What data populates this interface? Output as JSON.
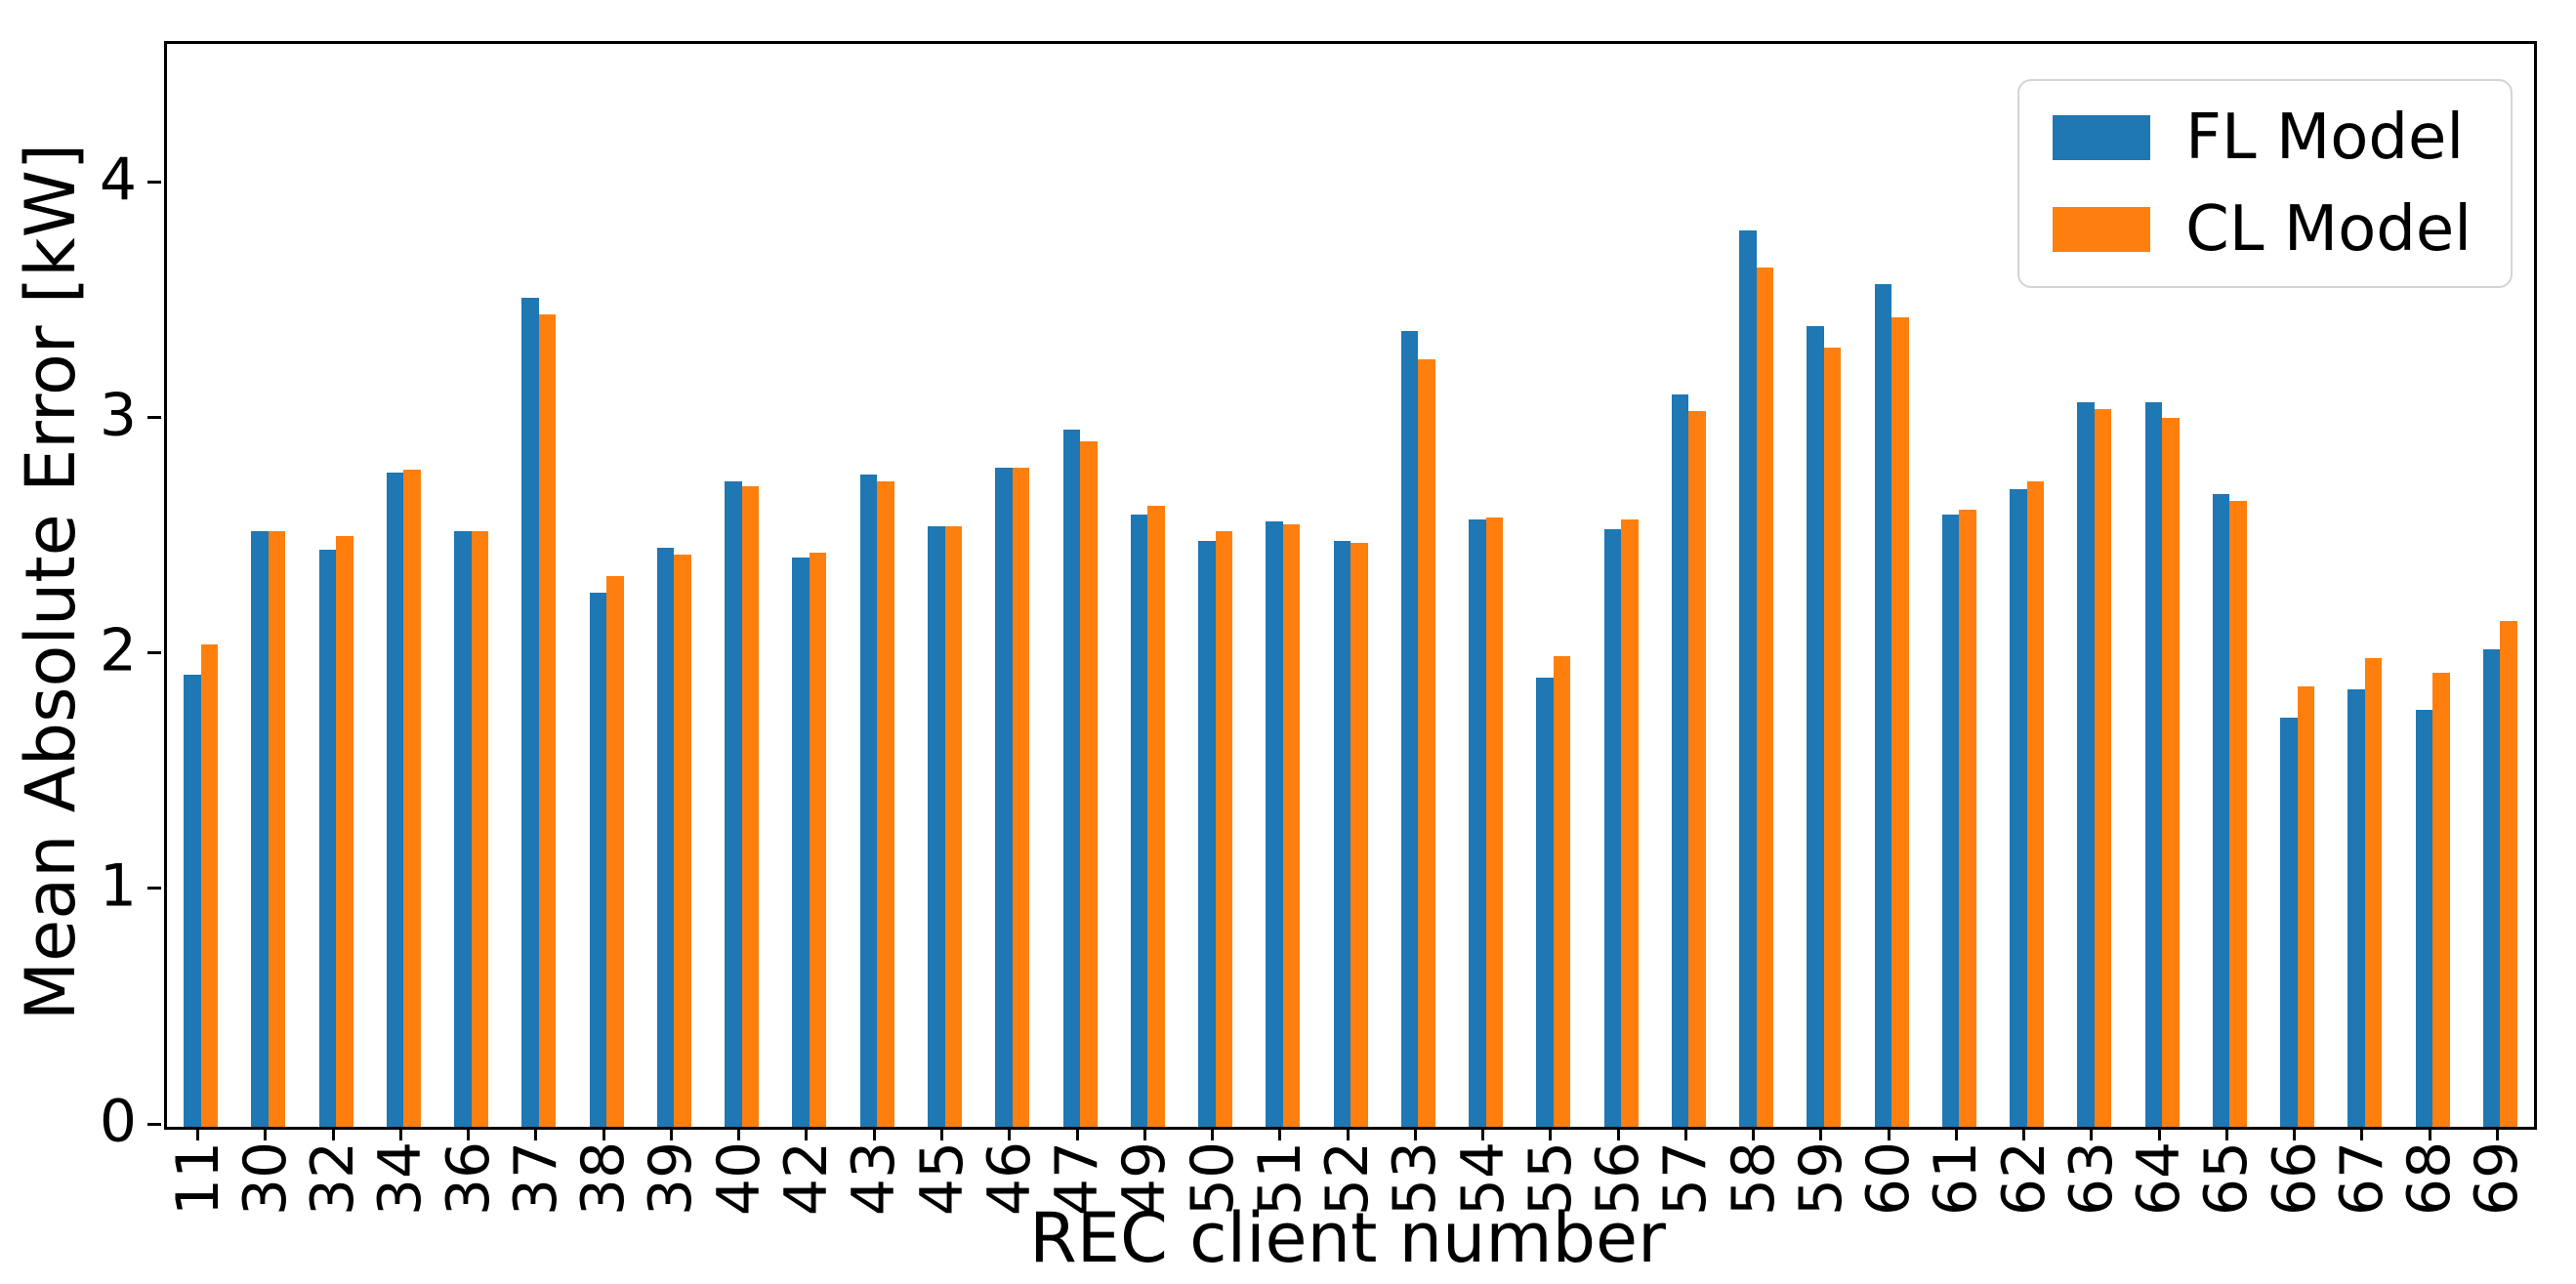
{
  "chart_data": {
    "type": "bar",
    "title": "",
    "xlabel": "REC client number",
    "ylabel": "Mean Absolute Error [kW]",
    "categories": [
      "11",
      "30",
      "32",
      "34",
      "36",
      "37",
      "38",
      "39",
      "40",
      "42",
      "43",
      "45",
      "46",
      "47",
      "49",
      "50",
      "51",
      "52",
      "53",
      "54",
      "55",
      "56",
      "57",
      "58",
      "59",
      "60",
      "61",
      "62",
      "63",
      "64",
      "65",
      "66",
      "67",
      "68",
      "69"
    ],
    "series": [
      {
        "name": "FL Model",
        "color": "#1f77b4",
        "values": [
          1.92,
          2.53,
          2.45,
          2.78,
          2.53,
          3.52,
          2.27,
          2.46,
          2.74,
          2.42,
          2.77,
          2.55,
          2.8,
          2.96,
          2.6,
          2.49,
          2.57,
          2.49,
          3.38,
          2.58,
          1.91,
          2.54,
          3.11,
          3.81,
          3.4,
          3.58,
          2.6,
          2.71,
          3.08,
          3.08,
          2.69,
          1.74,
          1.86,
          1.77,
          2.03
        ]
      },
      {
        "name": "CL Model",
        "color": "#ff7f0e",
        "values": [
          2.05,
          2.53,
          2.51,
          2.79,
          2.53,
          3.45,
          2.34,
          2.43,
          2.72,
          2.44,
          2.74,
          2.55,
          2.8,
          2.91,
          2.64,
          2.53,
          2.56,
          2.48,
          3.26,
          2.59,
          2.0,
          2.58,
          3.04,
          3.65,
          3.31,
          3.44,
          2.62,
          2.74,
          3.05,
          3.01,
          2.66,
          1.87,
          1.99,
          1.93,
          2.15
        ]
      }
    ],
    "yticks": [
      "0",
      "1",
      "2",
      "3",
      "4"
    ],
    "ylim": [
      0,
      4.6
    ],
    "grid": false,
    "legend_position": "upper right",
    "axis_color": "#000000",
    "background_color": "#ffffff"
  }
}
